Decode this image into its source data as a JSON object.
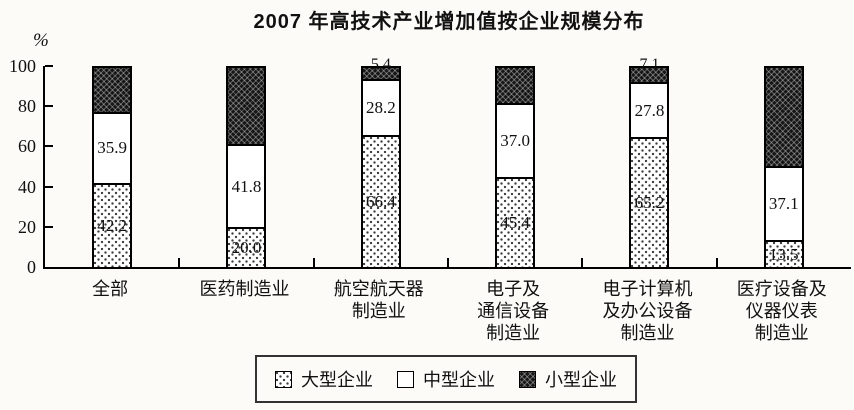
{
  "colors": {
    "ink": "#111111",
    "paper": "#fcfbf8"
  },
  "chart_data": {
    "type": "bar",
    "stacked": true,
    "title": "2007 年高技术产业增加值按企业规模分布",
    "unit_label": "%",
    "ylim": [
      0,
      100
    ],
    "y_ticks": [
      0,
      20,
      40,
      60,
      80,
      100
    ],
    "grid": false,
    "categories": [
      "全部",
      "医药制造业",
      "航空航天器制造业",
      "电子及通信设备制造业",
      "电子计算机及办公设备制造业",
      "医疗设备及仪器仪表制造业"
    ],
    "category_label_lines": [
      [
        "全部"
      ],
      [
        "医药制造业"
      ],
      [
        "航空航天器",
        "制造业"
      ],
      [
        "电子及",
        "通信设备",
        "制造业"
      ],
      [
        "电子计算机",
        "及办公设备",
        "制造业"
      ],
      [
        "医疗设备及",
        "仪器仪表",
        "制造业"
      ]
    ],
    "series": [
      {
        "name": "大型企业",
        "pattern": "light-dots",
        "values": [
          42.2,
          20.0,
          66.4,
          45.4,
          65.2,
          13.5
        ],
        "labels": [
          "42.2",
          "20.0",
          "66.4",
          "45.4",
          "65.2",
          "13.5"
        ]
      },
      {
        "name": "中型企业",
        "pattern": "plain-white",
        "values": [
          35.9,
          41.8,
          28.2,
          37.0,
          27.8,
          37.1
        ],
        "labels": [
          "35.9",
          "41.8",
          "28.2",
          "37.0",
          "27.8",
          "37.1"
        ]
      },
      {
        "name": "小型企业",
        "pattern": "dark-grid",
        "values": [
          21.9,
          38.2,
          5.4,
          17.6,
          7.1,
          49.4
        ],
        "labels": [
          "",
          "",
          "5.4",
          "",
          "7.1",
          ""
        ]
      }
    ],
    "legend": {
      "position": "bottom",
      "items": [
        {
          "label": "大型企业",
          "pattern": "light-dots"
        },
        {
          "label": "中型企业",
          "pattern": "plain-white"
        },
        {
          "label": "小型企业",
          "pattern": "dark-grid"
        }
      ]
    }
  }
}
